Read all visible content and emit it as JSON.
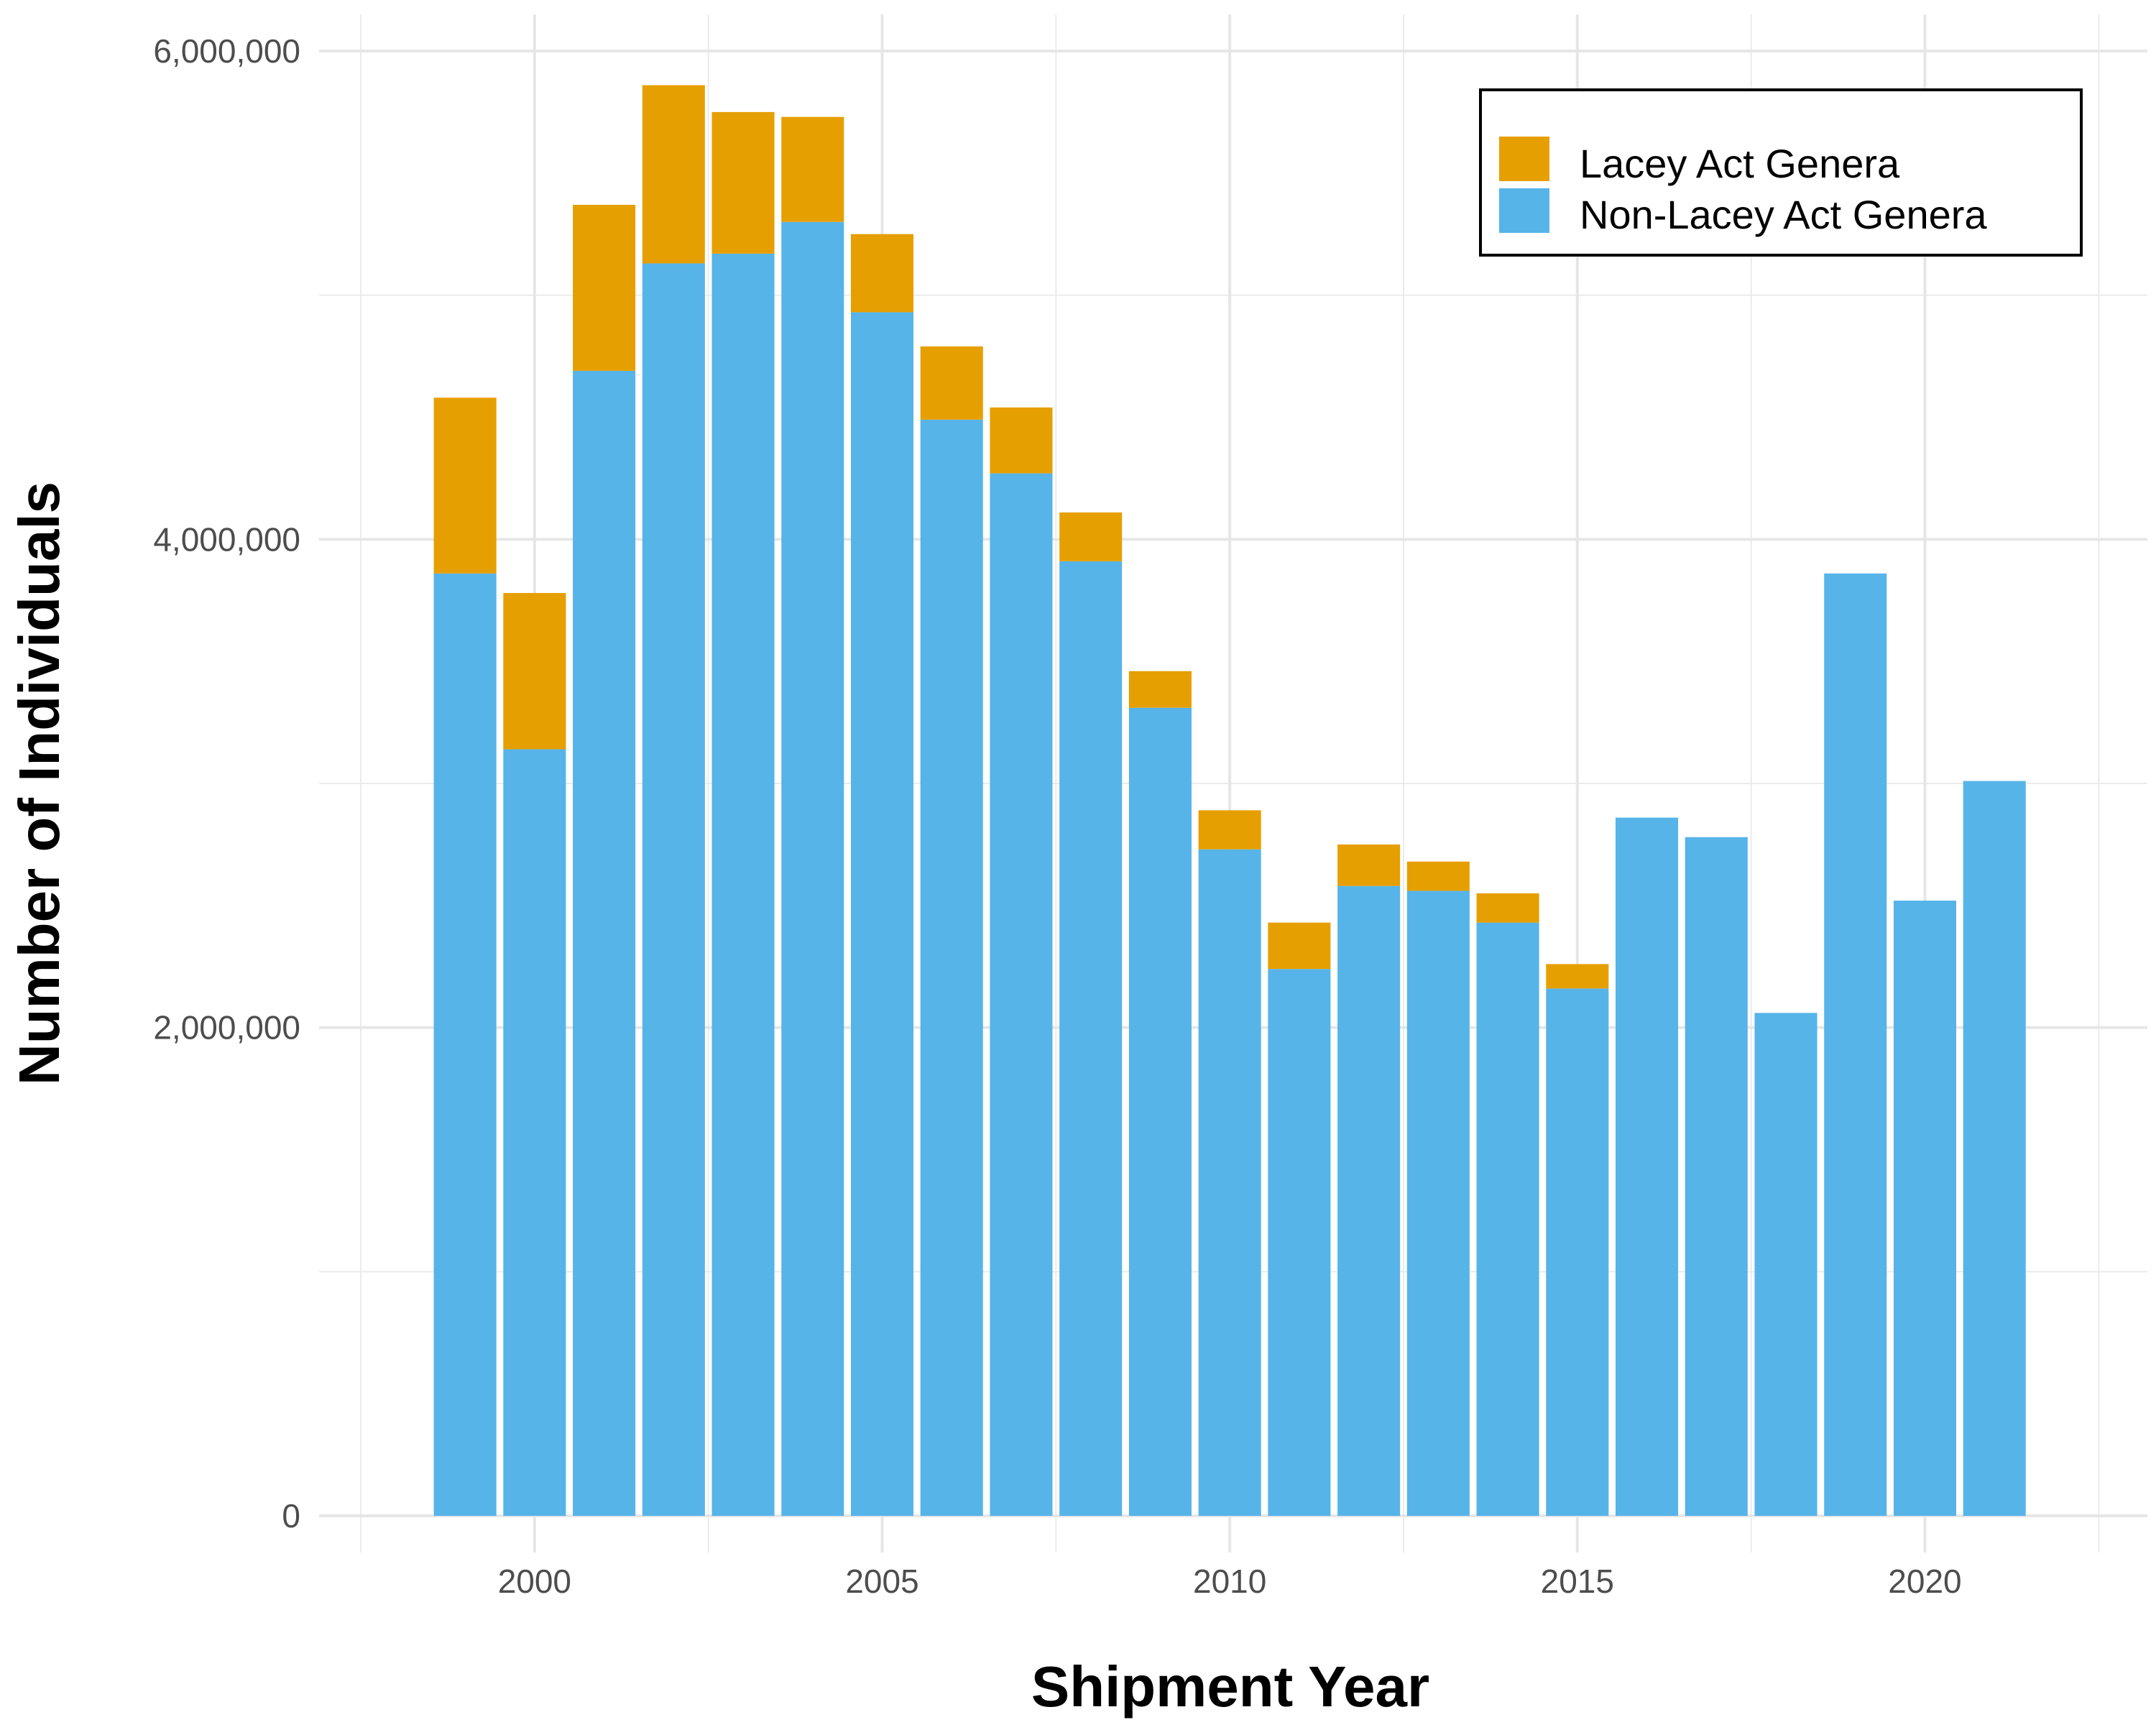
{
  "chart_data": {
    "type": "bar",
    "stacked": true,
    "title": "",
    "xlabel": "Shipment Year",
    "ylabel": "Number of Individuals",
    "x": [
      1999,
      2000,
      2001,
      2002,
      2003,
      2004,
      2005,
      2006,
      2007,
      2008,
      2009,
      2010,
      2011,
      2012,
      2013,
      2014,
      2015,
      2016,
      2017,
      2018,
      2019,
      2020,
      2021
    ],
    "series": [
      {
        "name": "Non-Lacey Act Genera",
        "color": "#56B4E9",
        "values": [
          3860000,
          3140000,
          4690000,
          5130000,
          5170000,
          5300000,
          4930000,
          4490000,
          4270000,
          3910000,
          3310000,
          2730000,
          2240000,
          2580000,
          2560000,
          2430000,
          2160000,
          2860000,
          2780000,
          2060000,
          3860000,
          2520000,
          3010000
        ]
      },
      {
        "name": "Lacey Act Genera",
        "color": "#E69F00",
        "values": [
          720000,
          640000,
          680000,
          730000,
          580000,
          430000,
          320000,
          300000,
          270000,
          200000,
          150000,
          160000,
          190000,
          170000,
          120000,
          120000,
          100000,
          0,
          0,
          0,
          0,
          0,
          0
        ]
      }
    ],
    "xlim": [
      1996.9,
      2023.2
    ],
    "ylim": [
      -150000,
      6150000
    ],
    "x_ticks": [
      2000,
      2005,
      2010,
      2015,
      2020
    ],
    "x_tick_labels": [
      "2000",
      "2005",
      "2010",
      "2015",
      "2020"
    ],
    "y_ticks": [
      0,
      2000000,
      4000000,
      6000000
    ],
    "y_tick_labels": [
      "0",
      "2,000,000",
      "4,000,000",
      "6,000,000"
    ],
    "grid": true,
    "legend": {
      "position": "top-right",
      "entries": [
        "Lacey Act Genera",
        "Non-Lacey Act Genera"
      ]
    }
  }
}
